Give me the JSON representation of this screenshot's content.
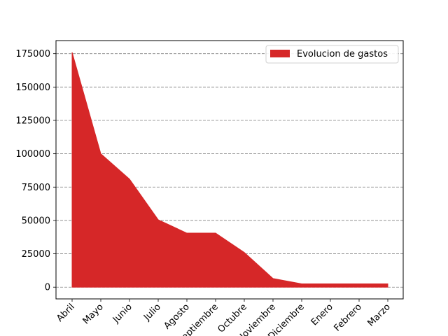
{
  "chart_data": {
    "type": "area",
    "categories": [
      "Abril",
      "Mayo",
      "Junio",
      "Julio",
      "Agosto",
      "Septiembre",
      "Octubre",
      "Noviembre",
      "Diciembre",
      "Enero",
      "Febrero",
      "Marzo"
    ],
    "series": [
      {
        "name": "Evolucion de gastos",
        "values": [
          176000,
          100000,
          81000,
          50500,
          40500,
          40500,
          26000,
          6500,
          2500,
          2500,
          2500,
          2500
        ],
        "color": "#d62728"
      }
    ],
    "yticks": [
      0,
      25000,
      50000,
      75000,
      100000,
      125000,
      150000,
      175000
    ],
    "ylim": [
      -8800,
      184800
    ],
    "grid": "y-dashed",
    "legend_position": "top-right",
    "title": "",
    "xlabel": "",
    "ylabel": ""
  }
}
